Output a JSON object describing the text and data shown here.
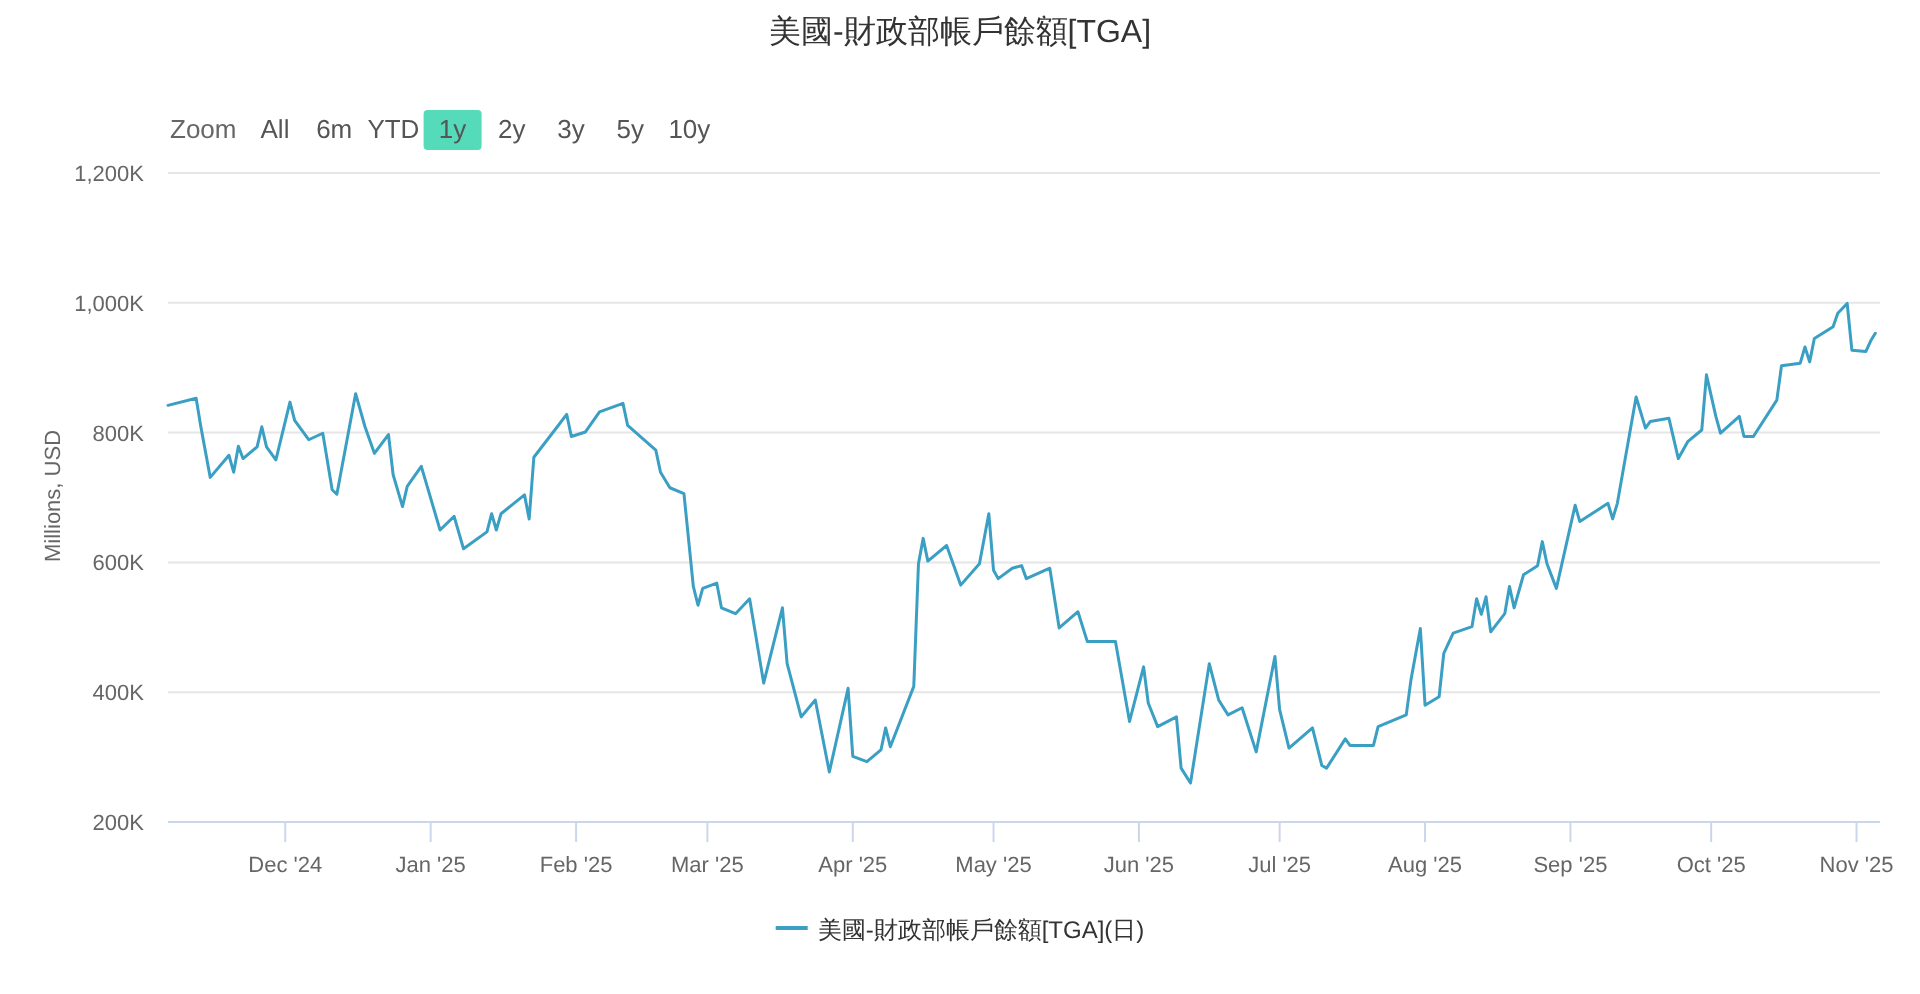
{
  "chart_data": {
    "type": "line",
    "title": "美國-財政部帳戶餘額[TGA]",
    "ylabel": "Millions, USD",
    "annotations": [
      "Zoom",
      "All",
      "6m",
      "YTD",
      "1y",
      "2y",
      "3y",
      "5y",
      "10y"
    ],
    "x": [
      "2024-11-06",
      "2024-11-12",
      "2024-11-13",
      "2024-11-15",
      "2024-11-19",
      "2024-11-20",
      "2024-11-21",
      "2024-11-22",
      "2024-11-25",
      "2024-11-26",
      "2024-11-27",
      "2024-11-29",
      "2024-12-02",
      "2024-12-03",
      "2024-12-06",
      "2024-12-09",
      "2024-12-11",
      "2024-12-12",
      "2024-12-16",
      "2024-12-18",
      "2024-12-20",
      "2024-12-23",
      "2024-12-24",
      "2024-12-26",
      "2024-12-27",
      "2024-12-30",
      "2025-01-03",
      "2025-01-06",
      "2025-01-08",
      "2025-01-13",
      "2025-01-14",
      "2025-01-15",
      "2025-01-16",
      "2025-01-21",
      "2025-01-22",
      "2025-01-23",
      "2025-01-28",
      "2025-01-30",
      "2025-01-31",
      "2025-02-03",
      "2025-02-06",
      "2025-02-11",
      "2025-02-12",
      "2025-02-18",
      "2025-02-19",
      "2025-02-21",
      "2025-02-24",
      "2025-02-26",
      "2025-02-27",
      "2025-02-28",
      "2025-03-03",
      "2025-03-04",
      "2025-03-07",
      "2025-03-10",
      "2025-03-13",
      "2025-03-17",
      "2025-03-18",
      "2025-03-21",
      "2025-03-24",
      "2025-03-27",
      "2025-03-31",
      "2025-04-01",
      "2025-04-04",
      "2025-04-07",
      "2025-04-08",
      "2025-04-09",
      "2025-04-14",
      "2025-04-15",
      "2025-04-16",
      "2025-04-17",
      "2025-04-21",
      "2025-04-24",
      "2025-04-28",
      "2025-04-30",
      "2025-05-01",
      "2025-05-02",
      "2025-05-05",
      "2025-05-07",
      "2025-05-08",
      "2025-05-13",
      "2025-05-15",
      "2025-05-19",
      "2025-05-21",
      "2025-05-27",
      "2025-05-30",
      "2025-06-02",
      "2025-06-03",
      "2025-06-05",
      "2025-06-09",
      "2025-06-10",
      "2025-06-12",
      "2025-06-16",
      "2025-06-18",
      "2025-06-20",
      "2025-06-23",
      "2025-06-26",
      "2025-06-30",
      "2025-07-01",
      "2025-07-03",
      "2025-07-08",
      "2025-07-10",
      "2025-07-11",
      "2025-07-15",
      "2025-07-16",
      "2025-07-21",
      "2025-07-22",
      "2025-07-28",
      "2025-07-29",
      "2025-07-31",
      "2025-08-01",
      "2025-08-04",
      "2025-08-05",
      "2025-08-07",
      "2025-08-11",
      "2025-08-12",
      "2025-08-13",
      "2025-08-14",
      "2025-08-15",
      "2025-08-18",
      "2025-08-19",
      "2025-08-20",
      "2025-08-22",
      "2025-08-25",
      "2025-08-26",
      "2025-08-27",
      "2025-08-29",
      "2025-09-02",
      "2025-09-03",
      "2025-09-09",
      "2025-09-10",
      "2025-09-11",
      "2025-09-15",
      "2025-09-17",
      "2025-09-18",
      "2025-09-22",
      "2025-09-24",
      "2025-09-26",
      "2025-09-29",
      "2025-09-30",
      "2025-10-02",
      "2025-10-03",
      "2025-10-07",
      "2025-10-08",
      "2025-10-10",
      "2025-10-15",
      "2025-10-16",
      "2025-10-20",
      "2025-10-21",
      "2025-10-22",
      "2025-10-23",
      "2025-10-27",
      "2025-10-28",
      "2025-10-30",
      "2025-10-31",
      "2025-11-03",
      "2025-11-04",
      "2025-11-05"
    ],
    "series": [
      {
        "name": "美國-財政部帳戶餘額[TGA](日)",
        "color": "#3b9fc4",
        "values": [
          842000,
          853000,
          809000,
          731000,
          765000,
          739000,
          779000,
          760000,
          778000,
          809000,
          778000,
          758000,
          847000,
          819000,
          789000,
          799000,
          712000,
          705000,
          860000,
          809000,
          768000,
          797000,
          735000,
          686000,
          717000,
          748000,
          650000,
          671000,
          621000,
          647000,
          675000,
          650000,
          675000,
          704000,
          667000,
          762000,
          809000,
          828000,
          794000,
          801000,
          832000,
          845000,
          811000,
          773000,
          739000,
          715000,
          706000,
          563000,
          534000,
          560000,
          568000,
          530000,
          521000,
          544000,
          414000,
          530000,
          444000,
          362000,
          388000,
          277000,
          406000,
          301000,
          293000,
          311000,
          345000,
          316000,
          409000,
          598000,
          637000,
          602000,
          626000,
          565000,
          598000,
          675000,
          588000,
          575000,
          591000,
          595000,
          575000,
          591000,
          499000,
          524000,
          478000,
          478000,
          355000,
          439000,
          383000,
          347000,
          362000,
          283000,
          260000,
          444000,
          388000,
          365000,
          376000,
          308000,
          455000,
          373000,
          314000,
          345000,
          287000,
          283000,
          328000,
          318000,
          318000,
          347000,
          365000,
          419000,
          498000,
          380000,
          393000,
          460000,
          491000,
          501000,
          544000,
          520000,
          547000,
          493000,
          521000,
          563000,
          530000,
          581000,
          595000,
          632000,
          598000,
          560000,
          688000,
          663000,
          691000,
          667000,
          691000,
          855000,
          807000,
          817000,
          822000,
          760000,
          786000,
          804000,
          889000,
          825000,
          799000,
          825000,
          794000,
          794000,
          850000,
          903000,
          907000,
          932000,
          909000,
          945000,
          963000,
          984000,
          999000,
          927000,
          925000,
          941000,
          953000
        ]
      }
    ],
    "xlim": [
      "2024-11-06",
      "2025-11-06"
    ],
    "ylim": [
      200000,
      1200000
    ],
    "xticks": [
      {
        "value": "2024-12-01",
        "label": "Dec '24"
      },
      {
        "value": "2025-01-01",
        "label": "Jan '25"
      },
      {
        "value": "2025-02-01",
        "label": "Feb '25"
      },
      {
        "value": "2025-03-01",
        "label": "Mar '25"
      },
      {
        "value": "2025-04-01",
        "label": "Apr '25"
      },
      {
        "value": "2025-05-01",
        "label": "May '25"
      },
      {
        "value": "2025-06-01",
        "label": "Jun '25"
      },
      {
        "value": "2025-07-01",
        "label": "Jul '25"
      },
      {
        "value": "2025-08-01",
        "label": "Aug '25"
      },
      {
        "value": "2025-09-01",
        "label": "Sep '25"
      },
      {
        "value": "2025-10-01",
        "label": "Oct '25"
      },
      {
        "value": "2025-11-01",
        "label": "Nov '25"
      }
    ],
    "yticks": [
      {
        "value": 200000,
        "label": "200K"
      },
      {
        "value": 400000,
        "label": "400K"
      },
      {
        "value": 600000,
        "label": "600K"
      },
      {
        "value": 800000,
        "label": "800K"
      },
      {
        "value": 1000000,
        "label": "1,000K"
      },
      {
        "value": 1200000,
        "label": "1,200K"
      }
    ],
    "grid": "y",
    "legend": "bottom"
  }
}
